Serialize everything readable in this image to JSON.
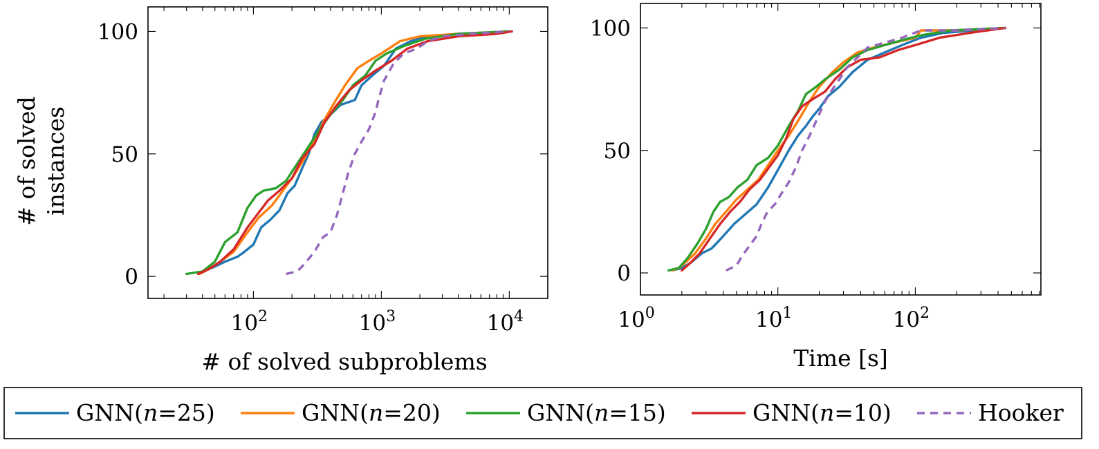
{
  "chart_data": [
    {
      "type": "line",
      "xscale": "log",
      "xlim": [
        15,
        20000
      ],
      "ylim": [
        -9,
        110
      ],
      "xticks": [
        100,
        1000,
        10000
      ],
      "xtick_labels": [
        {
          "base": "10",
          "exp": "2"
        },
        {
          "base": "10",
          "exp": "3"
        },
        {
          "base": "10",
          "exp": "4"
        }
      ],
      "yticks": [
        0,
        50,
        100
      ],
      "ytick_labels": [
        "0",
        "50",
        "100"
      ],
      "xlabel": "# of solved subproblems",
      "ylabel": [
        "# of solved",
        "instances"
      ],
      "grid": false,
      "series": [
        {
          "name": "GNN(n=25)",
          "color": "#1f77b4",
          "dash": false,
          "points": [
            [
              40,
              2
            ],
            [
              50,
              4
            ],
            [
              60,
              6
            ],
            [
              75,
              8
            ],
            [
              85,
              10
            ],
            [
              100,
              13
            ],
            [
              115,
              20
            ],
            [
              135,
              23
            ],
            [
              160,
              27
            ],
            [
              185,
              34
            ],
            [
              210,
              37
            ],
            [
              240,
              44
            ],
            [
              270,
              50
            ],
            [
              300,
              58
            ],
            [
              340,
              63
            ],
            [
              400,
              66
            ],
            [
              480,
              70
            ],
            [
              620,
              72
            ],
            [
              700,
              78
            ],
            [
              850,
              82
            ],
            [
              1050,
              86
            ],
            [
              1300,
              93
            ],
            [
              1700,
              96
            ],
            [
              2300,
              98
            ],
            [
              4000,
              99
            ],
            [
              10000,
              100
            ]
          ]
        },
        {
          "name": "GNN(n=20)",
          "color": "#ff7f0e",
          "dash": false,
          "points": [
            [
              38,
              1
            ],
            [
              45,
              3
            ],
            [
              55,
              6
            ],
            [
              70,
              10
            ],
            [
              90,
              18
            ],
            [
              110,
              24
            ],
            [
              140,
              29
            ],
            [
              170,
              35
            ],
            [
              200,
              40
            ],
            [
              250,
              48
            ],
            [
              300,
              56
            ],
            [
              360,
              64
            ],
            [
              430,
              71
            ],
            [
              520,
              78
            ],
            [
              650,
              85
            ],
            [
              800,
              88
            ],
            [
              1000,
              91
            ],
            [
              1400,
              96
            ],
            [
              2000,
              98
            ],
            [
              4000,
              99
            ],
            [
              10000,
              100
            ]
          ]
        },
        {
          "name": "GNN(n=15)",
          "color": "#2ca02c",
          "dash": false,
          "points": [
            [
              30,
              1
            ],
            [
              40,
              2
            ],
            [
              50,
              6
            ],
            [
              60,
              14
            ],
            [
              75,
              18
            ],
            [
              90,
              28
            ],
            [
              105,
              33
            ],
            [
              120,
              35
            ],
            [
              150,
              36
            ],
            [
              180,
              39
            ],
            [
              220,
              46
            ],
            [
              270,
              53
            ],
            [
              330,
              60
            ],
            [
              400,
              66
            ],
            [
              500,
              72
            ],
            [
              600,
              78
            ],
            [
              750,
              82
            ],
            [
              900,
              88
            ],
            [
              1100,
              91
            ],
            [
              1500,
              94
            ],
            [
              2200,
              97
            ],
            [
              4000,
              99
            ],
            [
              10000,
              100
            ]
          ]
        },
        {
          "name": "GNN(n=10)",
          "color": "#d62728",
          "dash": false,
          "points": [
            [
              37,
              1
            ],
            [
              45,
              3
            ],
            [
              55,
              6
            ],
            [
              70,
              11
            ],
            [
              90,
              20
            ],
            [
              110,
              26
            ],
            [
              130,
              31
            ],
            [
              160,
              35
            ],
            [
              200,
              40
            ],
            [
              240,
              48
            ],
            [
              300,
              54
            ],
            [
              360,
              63
            ],
            [
              450,
              70
            ],
            [
              560,
              76
            ],
            [
              700,
              80
            ],
            [
              900,
              84
            ],
            [
              1200,
              88
            ],
            [
              1600,
              93
            ],
            [
              2300,
              96
            ],
            [
              4000,
              98
            ],
            [
              8000,
              99
            ],
            [
              10500,
              100
            ]
          ]
        },
        {
          "name": "Hooker",
          "color": "#9467bd",
          "dash": true,
          "points": [
            [
              180,
              1
            ],
            [
              220,
              2
            ],
            [
              250,
              5
            ],
            [
              300,
              10
            ],
            [
              350,
              16
            ],
            [
              400,
              18
            ],
            [
              450,
              25
            ],
            [
              500,
              34
            ],
            [
              550,
              42
            ],
            [
              620,
              50
            ],
            [
              700,
              55
            ],
            [
              800,
              60
            ],
            [
              900,
              67
            ],
            [
              950,
              72
            ],
            [
              1050,
              80
            ],
            [
              1250,
              87
            ],
            [
              1500,
              91
            ],
            [
              1900,
              93
            ],
            [
              2300,
              96
            ],
            [
              3000,
              98
            ],
            [
              5000,
              99
            ],
            [
              10000,
              100
            ]
          ]
        }
      ]
    },
    {
      "type": "line",
      "xscale": "log",
      "xlim": [
        1,
        820
      ],
      "ylim": [
        -9,
        110
      ],
      "xticks": [
        1,
        10,
        100
      ],
      "xtick_labels": [
        {
          "base": "10",
          "exp": "0"
        },
        {
          "base": "10",
          "exp": "1"
        },
        {
          "base": "10",
          "exp": "2"
        }
      ],
      "yticks": [
        0,
        50,
        100
      ],
      "ytick_labels": [
        "0",
        "50",
        "100"
      ],
      "xlabel": "Time [s]",
      "ylabel": [],
      "grid": false,
      "series": [
        {
          "name": "GNN(n=25)",
          "color": "#1f77b4",
          "dash": false,
          "points": [
            [
              1.7,
              1
            ],
            [
              2.0,
              2
            ],
            [
              2.3,
              4
            ],
            [
              2.8,
              8
            ],
            [
              3.3,
              10
            ],
            [
              4.0,
              15
            ],
            [
              4.8,
              20
            ],
            [
              5.8,
              24
            ],
            [
              7.0,
              28
            ],
            [
              8.5,
              35
            ],
            [
              10,
              42
            ],
            [
              12,
              50
            ],
            [
              14,
              56
            ],
            [
              16,
              60
            ],
            [
              18,
              64
            ],
            [
              20,
              67
            ],
            [
              23,
              72
            ],
            [
              28,
              76
            ],
            [
              35,
              82
            ],
            [
              45,
              87
            ],
            [
              60,
              90
            ],
            [
              80,
              93
            ],
            [
              110,
              96
            ],
            [
              160,
              98
            ],
            [
              450,
              100
            ]
          ]
        },
        {
          "name": "GNN(n=20)",
          "color": "#ff7f0e",
          "dash": false,
          "points": [
            [
              1.7,
              1
            ],
            [
              1.9,
              2
            ],
            [
              2.1,
              4
            ],
            [
              2.5,
              8
            ],
            [
              3.0,
              14
            ],
            [
              3.5,
              20
            ],
            [
              4.2,
              25
            ],
            [
              5.0,
              30
            ],
            [
              6.0,
              34
            ],
            [
              7.2,
              38
            ],
            [
              8.5,
              44
            ],
            [
              10,
              50
            ],
            [
              12,
              56
            ],
            [
              14,
              62
            ],
            [
              17,
              70
            ],
            [
              20,
              76
            ],
            [
              25,
              82
            ],
            [
              30,
              86
            ],
            [
              38,
              90
            ],
            [
              50,
              92
            ],
            [
              70,
              94
            ],
            [
              100,
              96
            ],
            [
              110,
              99
            ],
            [
              200,
              99
            ],
            [
              450,
              100
            ]
          ]
        },
        {
          "name": "GNN(n=15)",
          "color": "#2ca02c",
          "dash": false,
          "points": [
            [
              1.6,
              1
            ],
            [
              1.9,
              2
            ],
            [
              2.2,
              6
            ],
            [
              2.6,
              12
            ],
            [
              3.0,
              18
            ],
            [
              3.4,
              25
            ],
            [
              3.8,
              29
            ],
            [
              4.4,
              31
            ],
            [
              5.1,
              35
            ],
            [
              6.0,
              38
            ],
            [
              7.0,
              44
            ],
            [
              8.5,
              47
            ],
            [
              10,
              52
            ],
            [
              12,
              60
            ],
            [
              14,
              66
            ],
            [
              16,
              73
            ],
            [
              19,
              76
            ],
            [
              22,
              79
            ],
            [
              28,
              83
            ],
            [
              35,
              88
            ],
            [
              45,
              91
            ],
            [
              60,
              93
            ],
            [
              80,
              95
            ],
            [
              110,
              97
            ],
            [
              180,
              99
            ],
            [
              450,
              100
            ]
          ]
        },
        {
          "name": "GNN(n=10)",
          "color": "#d62728",
          "dash": false,
          "points": [
            [
              2.0,
              1
            ],
            [
              2.3,
              4
            ],
            [
              2.7,
              8
            ],
            [
              3.2,
              14
            ],
            [
              3.8,
              20
            ],
            [
              4.5,
              25
            ],
            [
              5.3,
              29
            ],
            [
              6.2,
              34
            ],
            [
              7.4,
              38
            ],
            [
              8.6,
              43
            ],
            [
              10,
              48
            ],
            [
              11.5,
              55
            ],
            [
              13,
              63
            ],
            [
              15,
              68
            ],
            [
              18,
              71
            ],
            [
              22,
              74
            ],
            [
              26,
              79
            ],
            [
              32,
              84
            ],
            [
              40,
              87
            ],
            [
              55,
              88
            ],
            [
              75,
              91
            ],
            [
              100,
              93
            ],
            [
              150,
              96
            ],
            [
              250,
              98
            ],
            [
              450,
              100
            ]
          ]
        },
        {
          "name": "Hooker",
          "color": "#9467bd",
          "dash": true,
          "points": [
            [
              4.2,
              1
            ],
            [
              5.0,
              3
            ],
            [
              5.5,
              7
            ],
            [
              6.2,
              11
            ],
            [
              7.0,
              15
            ],
            [
              7.6,
              20
            ],
            [
              8.4,
              25
            ],
            [
              9.5,
              28
            ],
            [
              10.5,
              32
            ],
            [
              12,
              37
            ],
            [
              13.5,
              43
            ],
            [
              15,
              50
            ],
            [
              17,
              56
            ],
            [
              19,
              62
            ],
            [
              22,
              70
            ],
            [
              25,
              75
            ],
            [
              28,
              79
            ],
            [
              32,
              84
            ],
            [
              38,
              88
            ],
            [
              45,
              92
            ],
            [
              60,
              94
            ],
            [
              80,
              96
            ],
            [
              110,
              99
            ],
            [
              200,
              99
            ],
            [
              450,
              100
            ]
          ]
        }
      ]
    }
  ],
  "legend": {
    "placement": "bottom",
    "items": [
      {
        "label": "GNN(",
        "italic": "n",
        "suffix": "=25)",
        "color": "#1f77b4",
        "dash": false
      },
      {
        "label": "GNN(",
        "italic": "n",
        "suffix": "=20)",
        "color": "#ff7f0e",
        "dash": false
      },
      {
        "label": "GNN(",
        "italic": "n",
        "suffix": "=15)",
        "color": "#2ca02c",
        "dash": false
      },
      {
        "label": "GNN(",
        "italic": "n",
        "suffix": "=10)",
        "color": "#d62728",
        "dash": false
      },
      {
        "label": "Hooker",
        "italic": "",
        "suffix": "",
        "color": "#9467bd",
        "dash": true
      }
    ]
  }
}
